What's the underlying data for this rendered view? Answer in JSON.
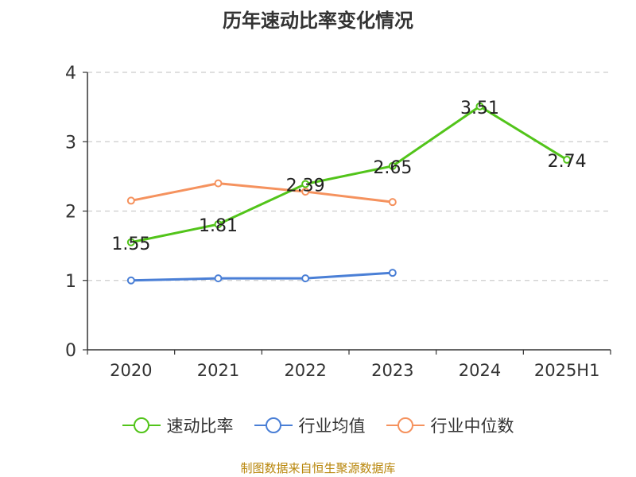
{
  "chart_data": {
    "type": "line",
    "title": "历年速动比率变化情况",
    "categories": [
      "2020",
      "2021",
      "2022",
      "2023",
      "2024",
      "2025H1"
    ],
    "yticks": [
      "0",
      "1",
      "2",
      "3",
      "4"
    ],
    "ylim": [
      0,
      4
    ],
    "grid": true,
    "legend_position": "bottom",
    "series": [
      {
        "name": "速动比率",
        "values": [
          1.55,
          1.81,
          2.39,
          2.65,
          3.51,
          2.74
        ],
        "labels": [
          "1.55",
          "1.81",
          "2.39",
          "2.65",
          "3.51",
          "2.74"
        ],
        "color": "#52c41a",
        "show_labels": true
      },
      {
        "name": "行业均值",
        "values": [
          1.0,
          1.03,
          1.03,
          1.11,
          null,
          null
        ],
        "color": "#4a7fd6",
        "show_labels": false
      },
      {
        "name": "行业中位数",
        "values": [
          2.15,
          2.4,
          2.28,
          2.13,
          null,
          null
        ],
        "color": "#f5925e",
        "show_labels": false
      }
    ]
  },
  "source": "制图数据来自恒生聚源数据库"
}
